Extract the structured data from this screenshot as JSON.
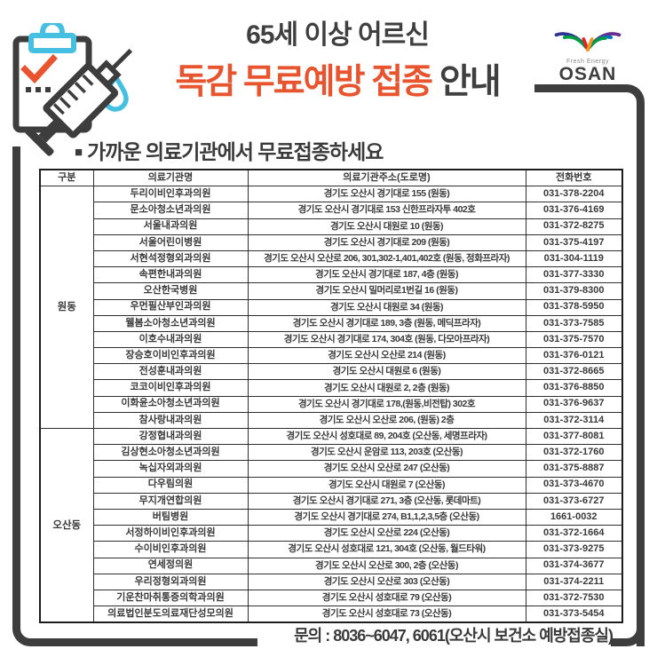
{
  "header": {
    "title_line1": "65세 이상 어르신",
    "title_line2_highlight": "독감 무료예방 접종",
    "title_line2_rest": " 안내",
    "logo": {
      "tagline": "Fresh Energy",
      "name": "OSAN"
    }
  },
  "section": {
    "bullet": "■",
    "heading": "가까운 의료기관에서 무료접종하세요"
  },
  "table": {
    "headers": [
      "구분",
      "의료기관명",
      "의료기관주소(도로명)",
      "전화번호"
    ],
    "groups": [
      {
        "district": "원동",
        "rows": [
          [
            "두리이비인후과의원",
            "경기도 오산시 경기대로 155 (원동)",
            "031-378-2204"
          ],
          [
            "문소아청소년과의원",
            "경기도 오산시 경기대로 153 신한프라자투 402호",
            "031-376-4169"
          ],
          [
            "서울내과의원",
            "경기도 오산시 대원로 10 (원동)",
            "031-372-8275"
          ],
          [
            "서울어린이병원",
            "경기도 오산시 경기대로 209 (원동)",
            "031-375-4197"
          ],
          [
            "서현석정형외과의원",
            "경기도 오산시 오산로 206,  301,302-1,401,402호 (원동, 정화프라자)",
            "031-304-1119"
          ],
          [
            "속편한내과의원",
            "경기도 오산시 경기대로 187, 4층  (원동)",
            "031-377-3330"
          ],
          [
            "오산한국병원",
            "경기도 오산시 밀머리로1번길 16  (원동)",
            "031-379-8300"
          ],
          [
            "우먼필산부인과의원",
            "경기도 오산시 대원로 34 (원동)",
            "031-378-5950"
          ],
          [
            "웰봄소아청소년과의원",
            "경기도 오산시 경기대로 189, 3층  (원동, 메딕프라자)",
            "031-373-7585"
          ],
          [
            "이호수내과의원",
            "경기도 오산시 경기대로 174,  304호 (원동, 다모아프라자)",
            "031-375-7570"
          ],
          [
            "장승호이비인후과의원",
            "경기도 오산시 오산로 214 (원동)",
            "031-376-0121"
          ],
          [
            "전성훈내과의원",
            "경기도 오산시 대원로 6 (원동)",
            "031-372-8665"
          ],
          [
            "코코이비인후과의원",
            "경기도 오산시 대원로 2, 2층  (원동)",
            "031-376-8850"
          ],
          [
            "이화윤소아청소년과의원",
            "경기도 오산시 경기대로 178,(원동,비전탑) 302호",
            "031-376-9637"
          ],
          [
            "참사랑내과의원",
            "경기도 오산시 오산로 206, (원동) 2층",
            "031-372-3114"
          ]
        ]
      },
      {
        "district": "오산동",
        "rows": [
          [
            "강정협내과의원",
            "경기도 오산시 성호대로 89, 204호  (오산동, 세명프라자)",
            "031-377-8081"
          ],
          [
            "김상현소아청소년과의원",
            "경기도 오산시 운암로 113, 203호  (오산동)",
            "031-372-1760"
          ],
          [
            "녹십자외과의원",
            "경기도 오산시 오산로 247 (오산동)",
            "031-375-8887"
          ],
          [
            "다우림의원",
            "경기도 오산시 대원로 7 (오산동)",
            "031-373-4670"
          ],
          [
            "무지개연합의원",
            "경기도 오산시 경기대로 271, 3층  (오산동, 롯데마트)",
            "031-373-6727"
          ],
          [
            "버팀병원",
            "경기도 오산시 경기대로 274,  B1,1,2,3,5층 (오산동)",
            "1661-0032"
          ],
          [
            "서정하이비인후과의원",
            "경기도 오산시 오산로 224 (오산동)",
            "031-372-1664"
          ],
          [
            "수이비인후과의원",
            "경기도 오산시 성호대로 121,  304호 (오산동, 월드타워)",
            "031-373-9275"
          ],
          [
            "연세정의원",
            "경기도 오산시 오산로 300, 2층  (오산동)",
            "031-374-3677"
          ],
          [
            "우리정형외과의원",
            "경기도 오산시 오산로 303 (오산동)",
            "031-374-2211"
          ],
          [
            "기운찬마취통증의학과의원",
            "경기도 오산시 성호대로 79 (오산동)",
            "031-372-7530"
          ],
          [
            "의료법인분도의료재단성모의원",
            "경기도 오산시 성호대로 73 (오산동)",
            "031-373-5454"
          ]
        ]
      }
    ]
  },
  "footer": {
    "inquiry": "문의 : 8036~6047, 6061(오산시 보건소 예방접종실)"
  },
  "colors": {
    "accent_red": "#E8542E",
    "accent_cyan": "#45C0E0",
    "frame_gray": "#3D3D3D"
  }
}
